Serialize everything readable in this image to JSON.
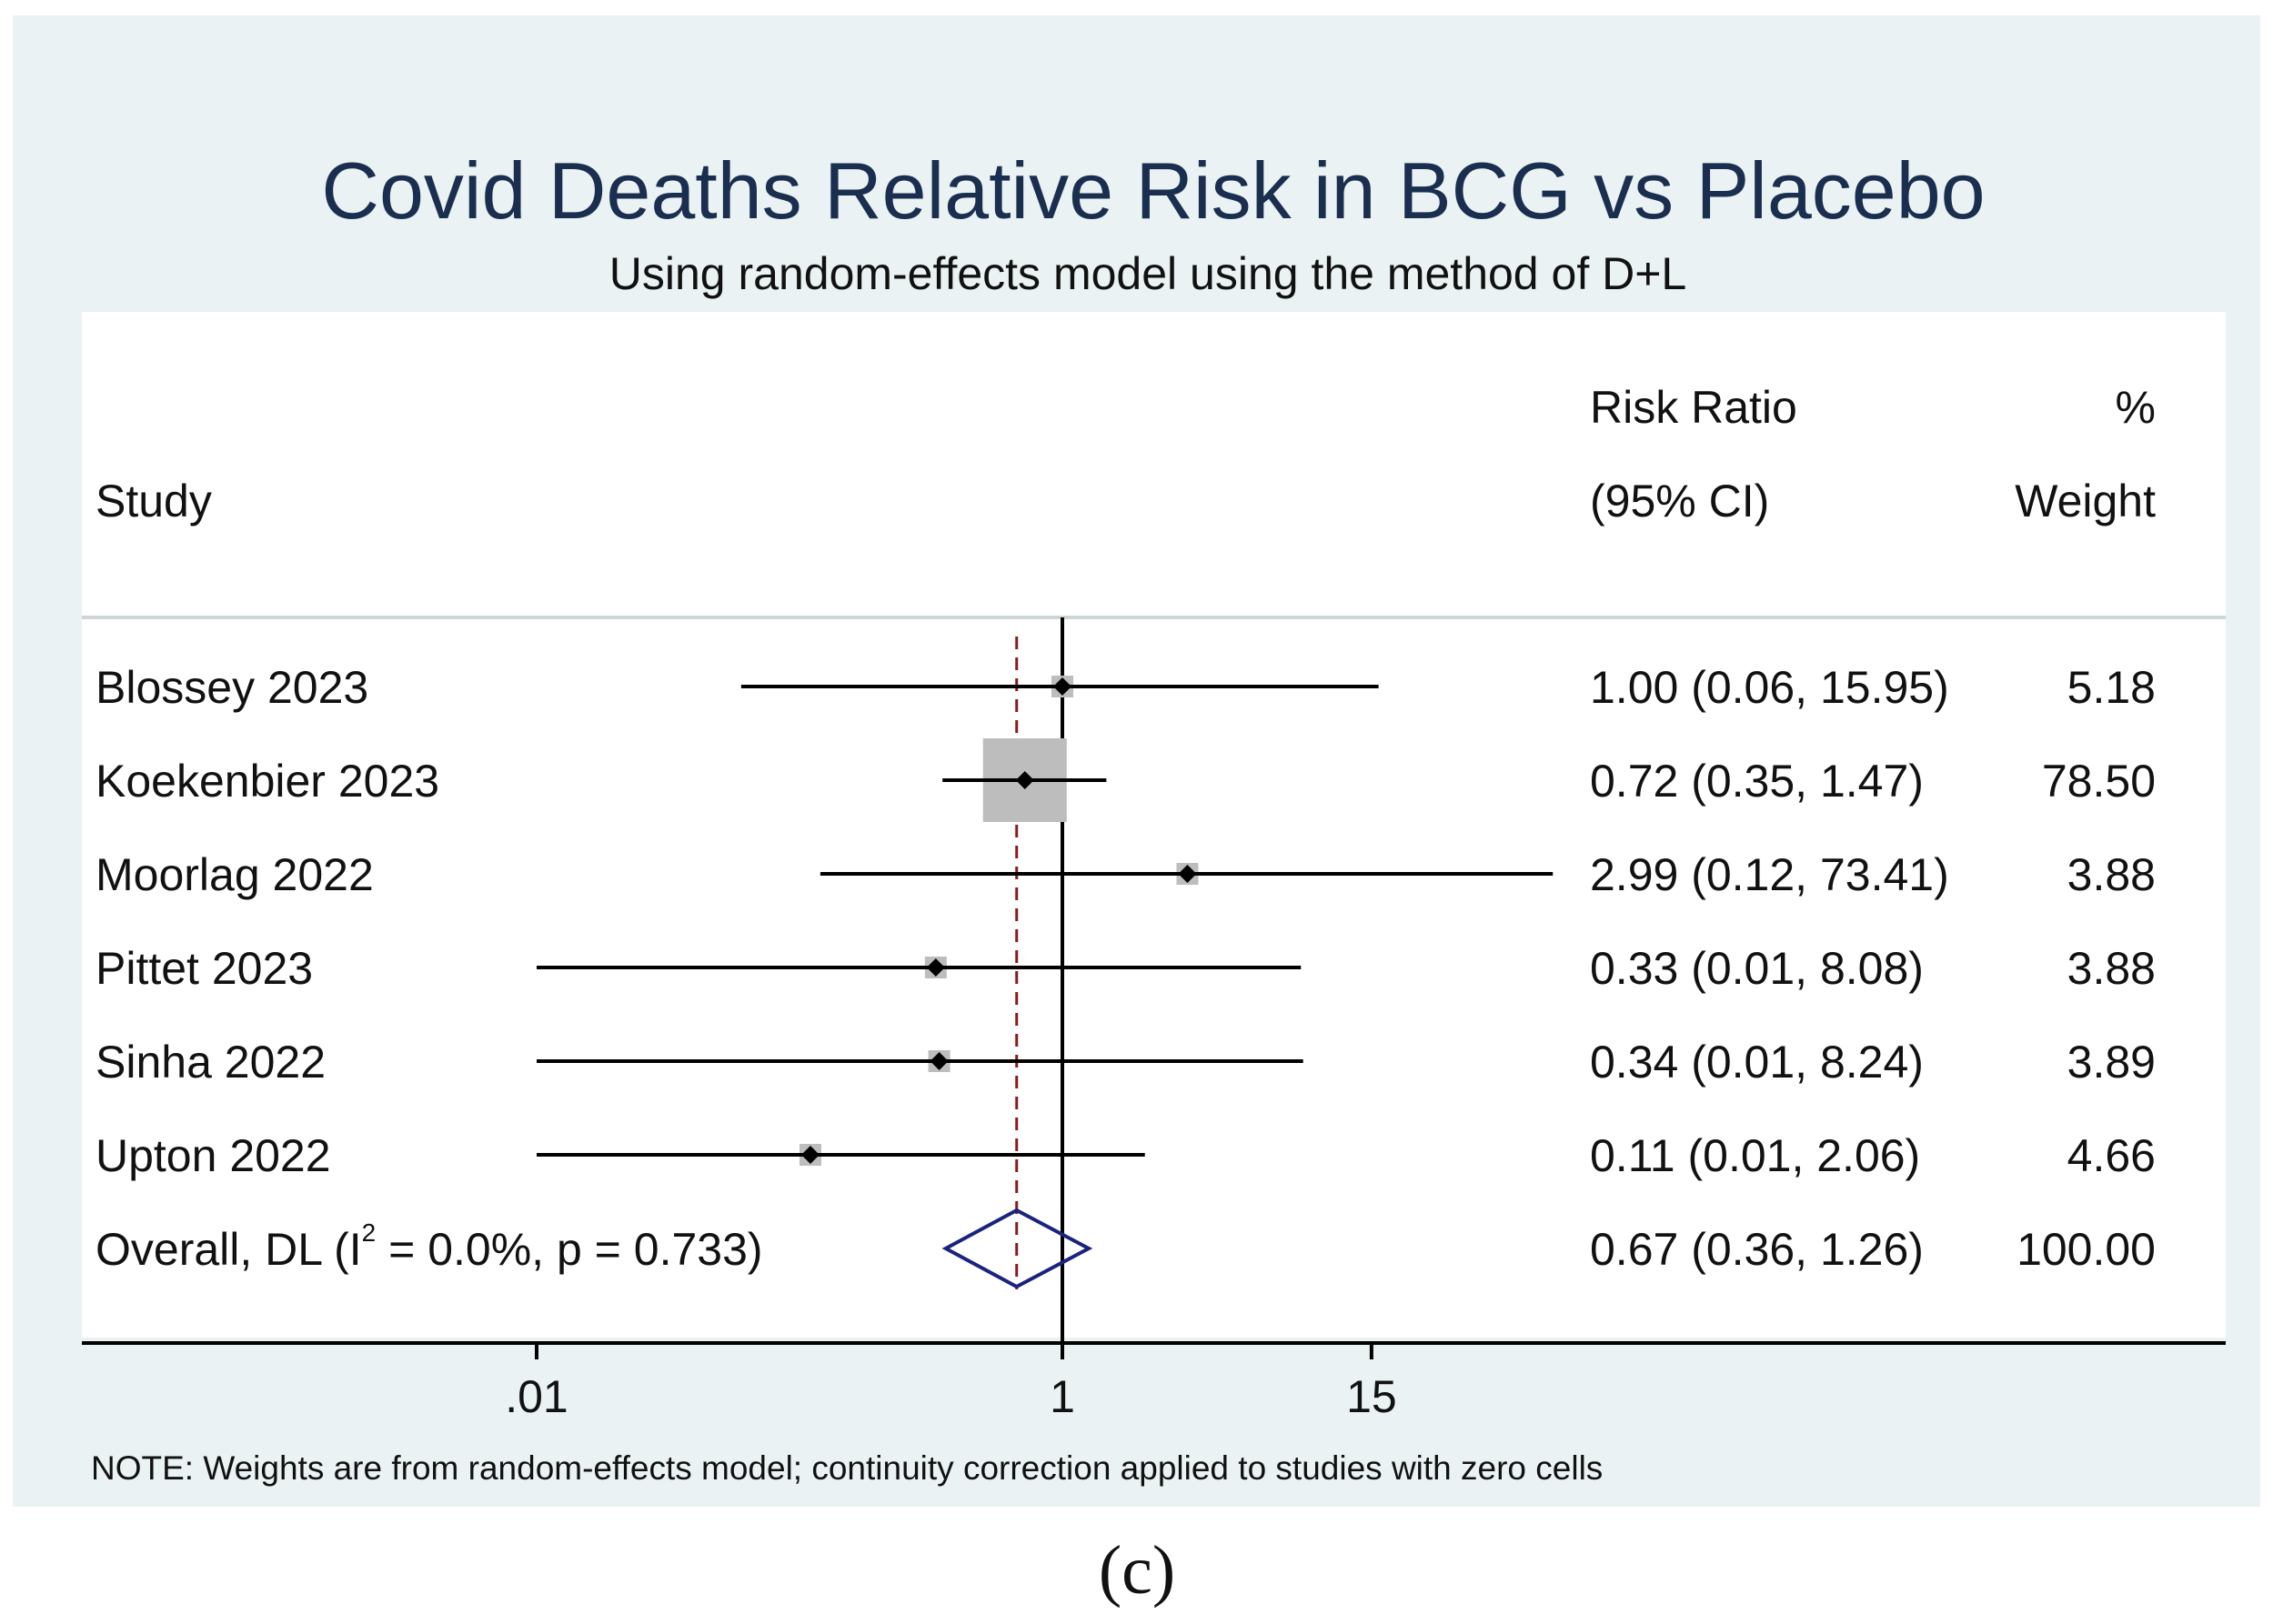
{
  "chart_data": {
    "type": "forest",
    "title": "Covid Deaths Relative Risk in BCG vs Placebo",
    "subtitle": "Using random-effects model using the method of D+L",
    "headers": {
      "study": "Study",
      "rr_line1": "Risk Ratio",
      "rr_line2": "(95% CI)",
      "w_line1": "%",
      "w_line2": "Weight"
    },
    "scale": "log",
    "xlim": [
      0.001,
      150
    ],
    "null_value": 1,
    "ticks": [
      {
        "value": 0.01,
        "label": ".01"
      },
      {
        "value": 1,
        "label": "1"
      },
      {
        "value": 15,
        "label": "15"
      }
    ],
    "studies": [
      {
        "name": "Blossey 2023",
        "rr": 1.0,
        "lo": 0.06,
        "hi": 15.95,
        "rr_text": "1.00 (0.06, 15.95)",
        "weight": 5.18,
        "weight_text": "5.18"
      },
      {
        "name": "Koekenbier 2023",
        "rr": 0.72,
        "lo": 0.35,
        "hi": 1.47,
        "rr_text": "0.72 (0.35, 1.47)",
        "weight": 78.5,
        "weight_text": "78.50"
      },
      {
        "name": "Moorlag 2022",
        "rr": 2.99,
        "lo": 0.12,
        "hi": 73.41,
        "rr_text": "2.99 (0.12, 73.41)",
        "weight": 3.88,
        "weight_text": "3.88"
      },
      {
        "name": "Pittet 2023",
        "rr": 0.33,
        "lo": 0.01,
        "hi": 8.08,
        "rr_text": "0.33 (0.01, 8.08)",
        "weight": 3.88,
        "weight_text": "3.88"
      },
      {
        "name": "Sinha 2022",
        "rr": 0.34,
        "lo": 0.01,
        "hi": 8.24,
        "rr_text": "0.34 (0.01, 8.24)",
        "weight": 3.89,
        "weight_text": "3.89"
      },
      {
        "name": "Upton 2022",
        "rr": 0.11,
        "lo": 0.01,
        "hi": 2.06,
        "rr_text": "0.11 (0.01, 2.06)",
        "weight": 4.66,
        "weight_text": "4.66"
      }
    ],
    "overall": {
      "label_prefix": "Overall, DL (I",
      "label_sup": "2",
      "label_suffix": " = 0.0%, p = 0.733)",
      "rr": 0.67,
      "lo": 0.36,
      "hi": 1.26,
      "rr_text": "0.67 (0.36, 1.26)",
      "weight_text": "100.00"
    },
    "note": "NOTE: Weights are from random-effects model; continuity correction applied to studies with zero cells",
    "panel_label": "(c)",
    "colors": {
      "outer_background": "#eaf2f3",
      "plot_background": "#ffffff",
      "title": "#1a2e4f",
      "ci_line": "#000000",
      "weight_box": "#bdbdbd",
      "overall_diamond": "#1a237e",
      "overall_reference_line": "#8b1a1a"
    }
  }
}
